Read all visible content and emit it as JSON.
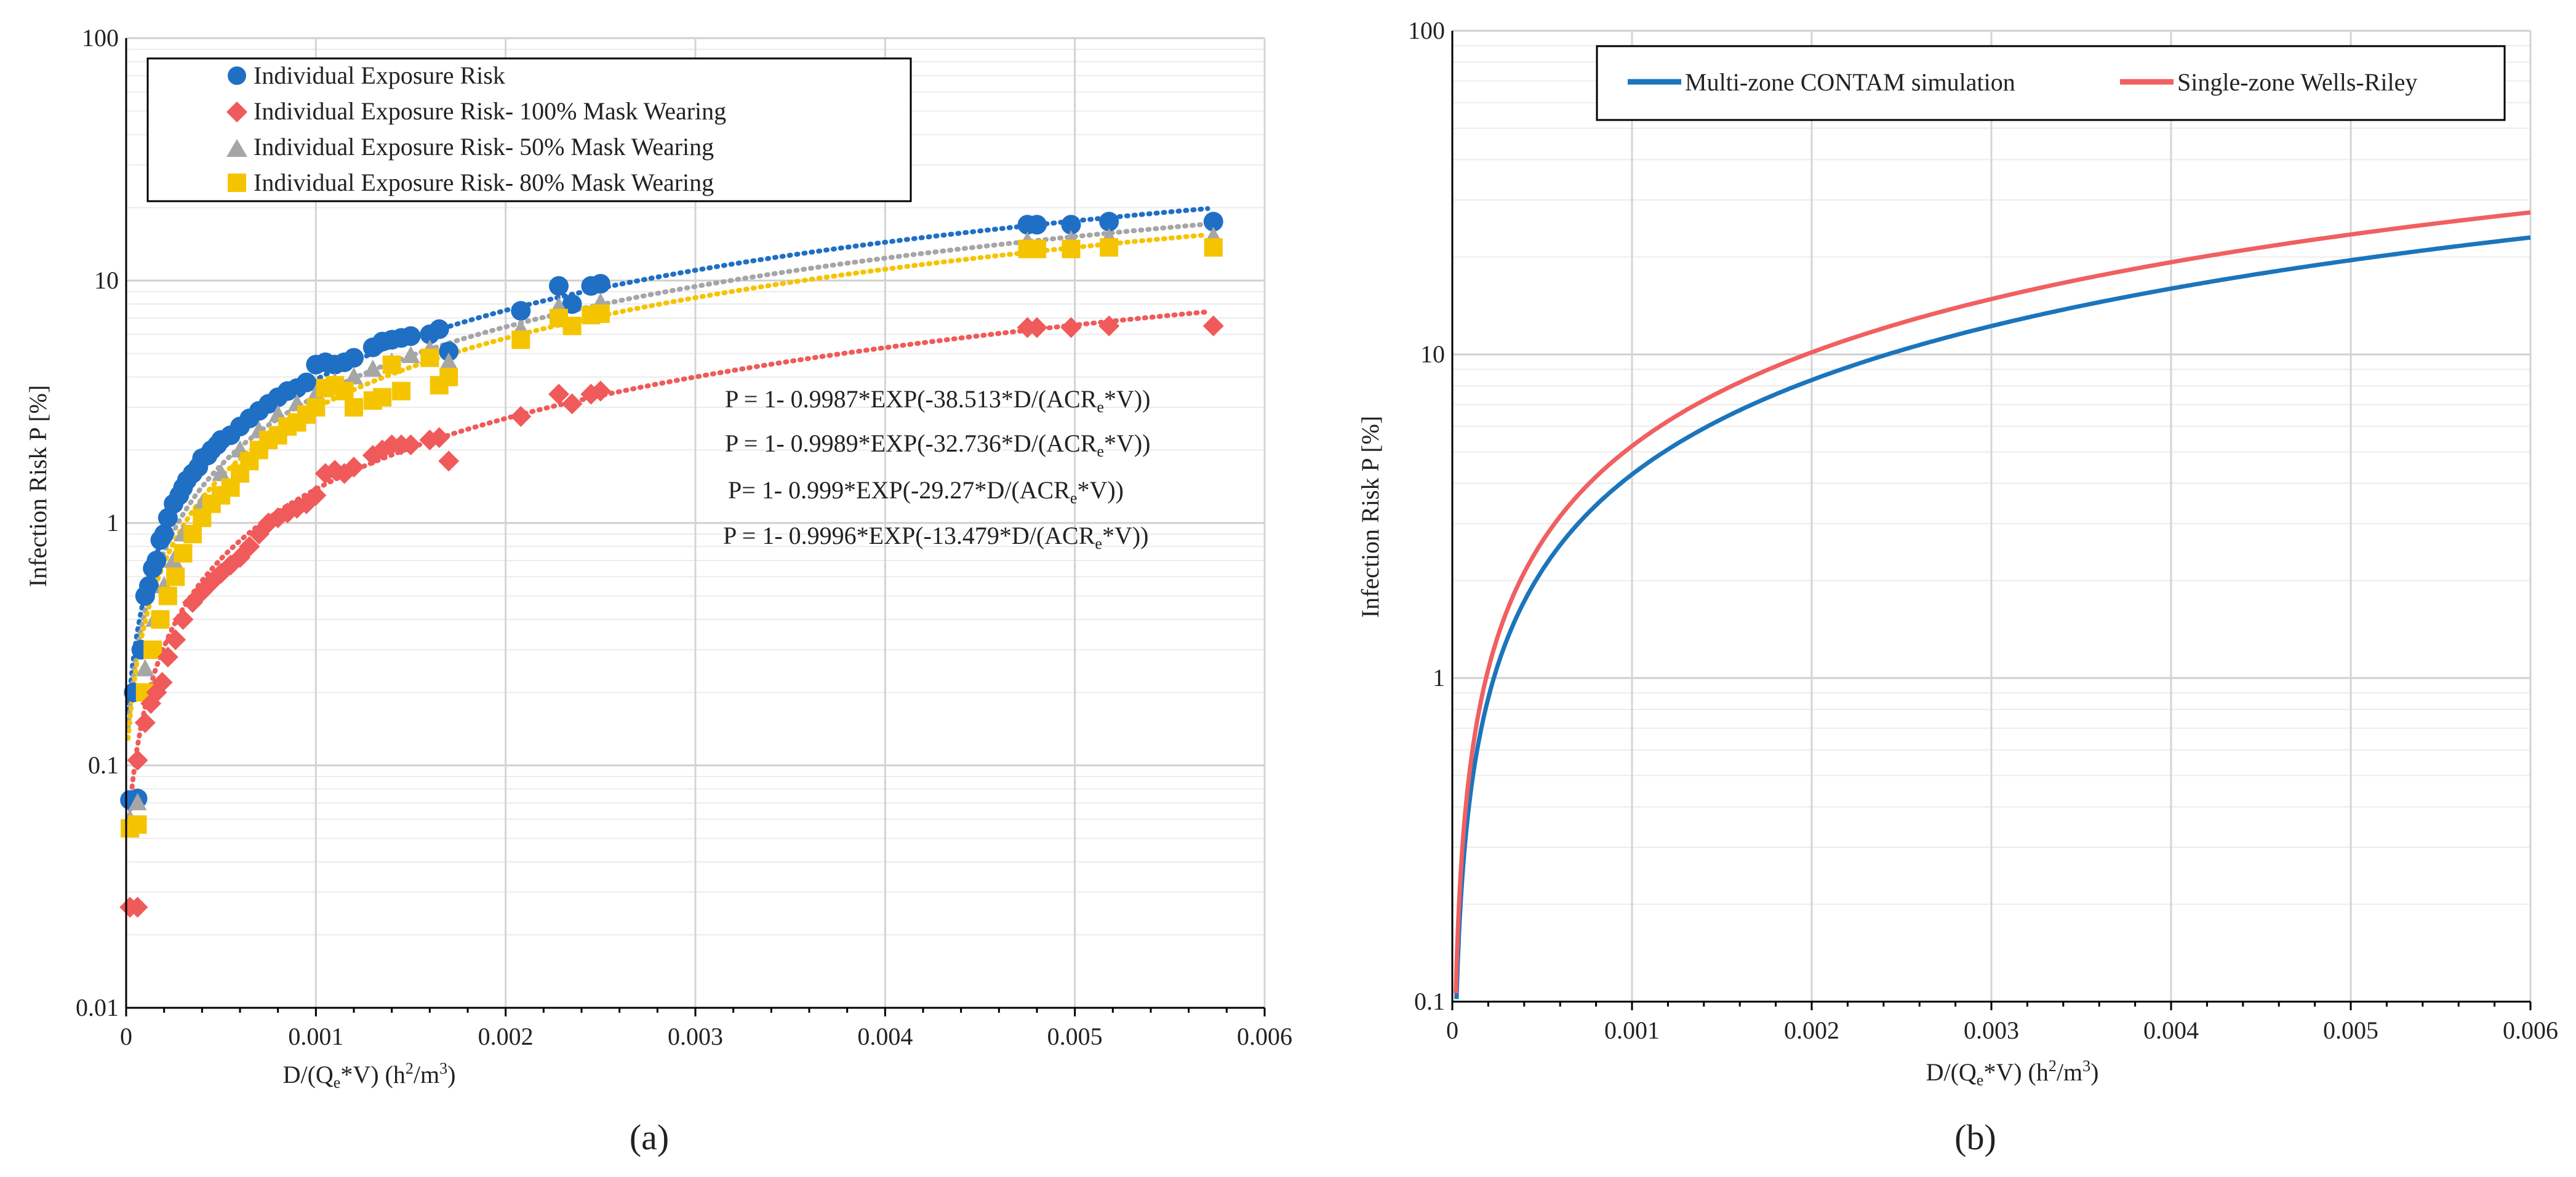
{
  "colors": {
    "blue": "#1f6fc5",
    "red": "#f05a5a",
    "gray": "#a6a6a6",
    "yellow": "#f5c400",
    "line_blue": "#1b75bc",
    "line_red": "#f06060",
    "grid": "#d9d9d9"
  },
  "chart_data": [
    {
      "id": "a",
      "type": "scatter",
      "caption": "(a)",
      "xlabel_parts": {
        "pre": "D/(Q",
        "sub": "e",
        "mid": "*V) (h",
        "sup": "2",
        "mid2": "/m",
        "sup2": "3",
        "post": ")"
      },
      "ylabel": "Infection Risk P [%]",
      "xlim": [
        0,
        0.006
      ],
      "ylim": [
        0.01,
        100
      ],
      "yscale": "log",
      "x_ticks": [
        "0",
        "0.001",
        "0.002",
        "0.003",
        "0.004",
        "0.005",
        "0.006"
      ],
      "y_ticks": [
        "0.01",
        "0.1",
        "1",
        "10",
        "100"
      ],
      "legend_position": "top-left",
      "series": [
        {
          "name": "Individual Exposure Risk",
          "color_key": "blue",
          "marker": "circle",
          "fit": {
            "a": 0.9987,
            "b": 38.513
          },
          "points": [
            [
              2e-05,
              0.072
            ],
            [
              4e-05,
              0.2
            ],
            [
              6e-05,
              0.073
            ],
            [
              8e-05,
              0.3
            ],
            [
              0.0001,
              0.5
            ],
            [
              0.00012,
              0.55
            ],
            [
              0.00014,
              0.65
            ],
            [
              0.00016,
              0.7
            ],
            [
              0.00018,
              0.85
            ],
            [
              0.0002,
              0.9
            ],
            [
              0.00022,
              1.05
            ],
            [
              0.00025,
              1.2
            ],
            [
              0.00028,
              1.3
            ],
            [
              0.0003,
              1.4
            ],
            [
              0.00032,
              1.5
            ],
            [
              0.00035,
              1.6
            ],
            [
              0.00038,
              1.7
            ],
            [
              0.0004,
              1.85
            ],
            [
              0.00043,
              1.9
            ],
            [
              0.00045,
              2.0
            ],
            [
              0.00048,
              2.1
            ],
            [
              0.0005,
              2.2
            ],
            [
              0.00055,
              2.3
            ],
            [
              0.0006,
              2.5
            ],
            [
              0.00065,
              2.7
            ],
            [
              0.0007,
              2.9
            ],
            [
              0.00075,
              3.1
            ],
            [
              0.0008,
              3.3
            ],
            [
              0.00085,
              3.5
            ],
            [
              0.0009,
              3.6
            ],
            [
              0.00095,
              3.8
            ],
            [
              0.001,
              4.5
            ],
            [
              0.00105,
              4.6
            ],
            [
              0.0011,
              4.5
            ],
            [
              0.00115,
              4.6
            ],
            [
              0.0012,
              4.8
            ],
            [
              0.0013,
              5.3
            ],
            [
              0.00135,
              5.6
            ],
            [
              0.0014,
              5.7
            ],
            [
              0.00145,
              5.8
            ],
            [
              0.0015,
              5.9
            ],
            [
              0.0016,
              6.0
            ],
            [
              0.00165,
              6.3
            ],
            [
              0.0017,
              5.1
            ],
            [
              0.00208,
              7.5
            ],
            [
              0.00228,
              9.5
            ],
            [
              0.00235,
              8.0
            ],
            [
              0.00245,
              9.5
            ],
            [
              0.0025,
              9.7
            ],
            [
              0.00475,
              17.0
            ],
            [
              0.0048,
              17.0
            ],
            [
              0.00498,
              17.0
            ],
            [
              0.00518,
              17.5
            ],
            [
              0.00573,
              17.5
            ]
          ]
        },
        {
          "name": "Individual Exposure Risk- 100% Mask Wearing",
          "color_key": "red",
          "marker": "diamond",
          "fit": {
            "a": 0.9996,
            "b": 13.479
          },
          "points": [
            [
              2e-05,
              0.026
            ],
            [
              6e-05,
              0.026
            ],
            [
              6e-05,
              0.105
            ],
            [
              0.0001,
              0.15
            ],
            [
              0.00013,
              0.18
            ],
            [
              0.00016,
              0.2
            ],
            [
              0.00019,
              0.22
            ],
            [
              0.00022,
              0.28
            ],
            [
              0.00026,
              0.33
            ],
            [
              0.0003,
              0.4
            ],
            [
              0.00035,
              0.47
            ],
            [
              0.0004,
              0.52
            ],
            [
              0.00045,
              0.57
            ],
            [
              0.0005,
              0.62
            ],
            [
              0.00055,
              0.67
            ],
            [
              0.0006,
              0.72
            ],
            [
              0.00065,
              0.8
            ],
            [
              0.0007,
              0.9
            ],
            [
              0.00075,
              1.0
            ],
            [
              0.0008,
              1.05
            ],
            [
              0.00085,
              1.1
            ],
            [
              0.0009,
              1.15
            ],
            [
              0.00095,
              1.2
            ],
            [
              0.001,
              1.3
            ],
            [
              0.00105,
              1.6
            ],
            [
              0.0011,
              1.65
            ],
            [
              0.00115,
              1.6
            ],
            [
              0.0012,
              1.7
            ],
            [
              0.0013,
              1.9
            ],
            [
              0.00135,
              2.0
            ],
            [
              0.0014,
              2.1
            ],
            [
              0.00145,
              2.1
            ],
            [
              0.0015,
              2.1
            ],
            [
              0.0016,
              2.2
            ],
            [
              0.00165,
              2.25
            ],
            [
              0.0017,
              1.8
            ],
            [
              0.00208,
              2.75
            ],
            [
              0.00228,
              3.4
            ],
            [
              0.00235,
              3.1
            ],
            [
              0.00245,
              3.4
            ],
            [
              0.0025,
              3.5
            ],
            [
              0.00475,
              6.4
            ],
            [
              0.0048,
              6.4
            ],
            [
              0.00498,
              6.4
            ],
            [
              0.00518,
              6.5
            ],
            [
              0.00573,
              6.5
            ]
          ]
        },
        {
          "name": "Individual Exposure Risk- 50% Mask Wearing",
          "color_key": "gray",
          "marker": "triangle",
          "fit": {
            "a": 0.9989,
            "b": 32.736
          },
          "points": [
            [
              2e-05,
              0.06
            ],
            [
              6e-05,
              0.07
            ],
            [
              0.0001,
              0.25
            ],
            [
              0.00015,
              0.4
            ],
            [
              0.0002,
              0.55
            ],
            [
              0.00025,
              0.7
            ],
            [
              0.0003,
              0.9
            ],
            [
              0.0004,
              1.2
            ],
            [
              0.0005,
              1.6
            ],
            [
              0.0006,
              2.0
            ],
            [
              0.0007,
              2.4
            ],
            [
              0.0008,
              2.8
            ],
            [
              0.0009,
              3.1
            ],
            [
              0.001,
              3.4
            ],
            [
              0.0011,
              3.8
            ],
            [
              0.0012,
              4.0
            ],
            [
              0.0013,
              4.3
            ],
            [
              0.0014,
              4.6
            ],
            [
              0.0015,
              4.9
            ],
            [
              0.0016,
              5.2
            ],
            [
              0.0017,
              4.6
            ],
            [
              0.00208,
              6.3
            ],
            [
              0.00228,
              7.8
            ],
            [
              0.0025,
              8.1
            ],
            [
              0.00475,
              14.5
            ],
            [
              0.00498,
              14.7
            ],
            [
              0.00518,
              15.0
            ],
            [
              0.00573,
              15.2
            ]
          ]
        },
        {
          "name": "Individual Exposure Risk- 80% Mask Wearing",
          "color_key": "yellow",
          "marker": "square",
          "fit": {
            "a": 0.999,
            "b": 29.27
          },
          "points": [
            [
              2e-05,
              0.055
            ],
            [
              6e-05,
              0.057
            ],
            [
              0.0001,
              0.2
            ],
            [
              0.00014,
              0.3
            ],
            [
              0.00018,
              0.4
            ],
            [
              0.00022,
              0.5
            ],
            [
              0.00026,
              0.6
            ],
            [
              0.0003,
              0.75
            ],
            [
              0.00035,
              0.9
            ],
            [
              0.0004,
              1.05
            ],
            [
              0.00045,
              1.2
            ],
            [
              0.0005,
              1.3
            ],
            [
              0.00055,
              1.4
            ],
            [
              0.0006,
              1.6
            ],
            [
              0.00065,
              1.8
            ],
            [
              0.0007,
              2.0
            ],
            [
              0.00075,
              2.2
            ],
            [
              0.0008,
              2.3
            ],
            [
              0.00085,
              2.5
            ],
            [
              0.0009,
              2.6
            ],
            [
              0.00095,
              2.8
            ],
            [
              0.001,
              3.0
            ],
            [
              0.00105,
              3.6
            ],
            [
              0.0011,
              3.7
            ],
            [
              0.00115,
              3.5
            ],
            [
              0.0012,
              3.0
            ],
            [
              0.0013,
              3.2
            ],
            [
              0.00135,
              3.3
            ],
            [
              0.0014,
              4.5
            ],
            [
              0.00145,
              3.5
            ],
            [
              0.0016,
              4.8
            ],
            [
              0.00165,
              3.7
            ],
            [
              0.0017,
              4.0
            ],
            [
              0.00208,
              5.7
            ],
            [
              0.00228,
              7.0
            ],
            [
              0.00235,
              6.5
            ],
            [
              0.00245,
              7.2
            ],
            [
              0.0025,
              7.3
            ],
            [
              0.00475,
              13.5
            ],
            [
              0.0048,
              13.5
            ],
            [
              0.00498,
              13.5
            ],
            [
              0.00518,
              13.7
            ],
            [
              0.00573,
              13.7
            ]
          ]
        }
      ],
      "equations": [
        {
          "pre": "P = 1- 0.9987*EXP(-38.513*D/(ACR",
          "sub": "e",
          "post": "*V))"
        },
        {
          "pre": "P = 1- 0.9989*EXP(-32.736*D/(ACR",
          "sub": "e",
          "post": "*V))"
        },
        {
          "pre": "P= 1- 0.999*EXP(-29.27*D/(ACR",
          "sub": "e",
          "post": "*V))"
        },
        {
          "pre": "P = 1- 0.9996*EXP(-13.479*D/(ACR",
          "sub": "e",
          "post": "*V))"
        }
      ]
    },
    {
      "id": "b",
      "type": "line",
      "caption": "(b)",
      "xlabel_parts": {
        "pre": "D/(Q",
        "sub": "e",
        "mid": "*V) (h",
        "sup": "2",
        "mid2": "/m",
        "sup2": "3",
        "post": ")"
      },
      "ylabel": "Infection Risk P [%]",
      "xlim": [
        0,
        0.006
      ],
      "ylim": [
        0.1,
        100
      ],
      "yscale": "log",
      "x_ticks": [
        "0",
        "0.001",
        "0.002",
        "0.003",
        "0.004",
        "0.005",
        "0.006"
      ],
      "y_ticks": [
        "0.1",
        "1",
        "10",
        "100"
      ],
      "legend_position": "top-right",
      "series": [
        {
          "name": "Multi-zone CONTAM simulation",
          "color_key": "line_blue",
          "k": 43.5
        },
        {
          "name": "Single-zone Wells-Riley",
          "color_key": "line_red",
          "k": 53.5
        }
      ]
    }
  ]
}
